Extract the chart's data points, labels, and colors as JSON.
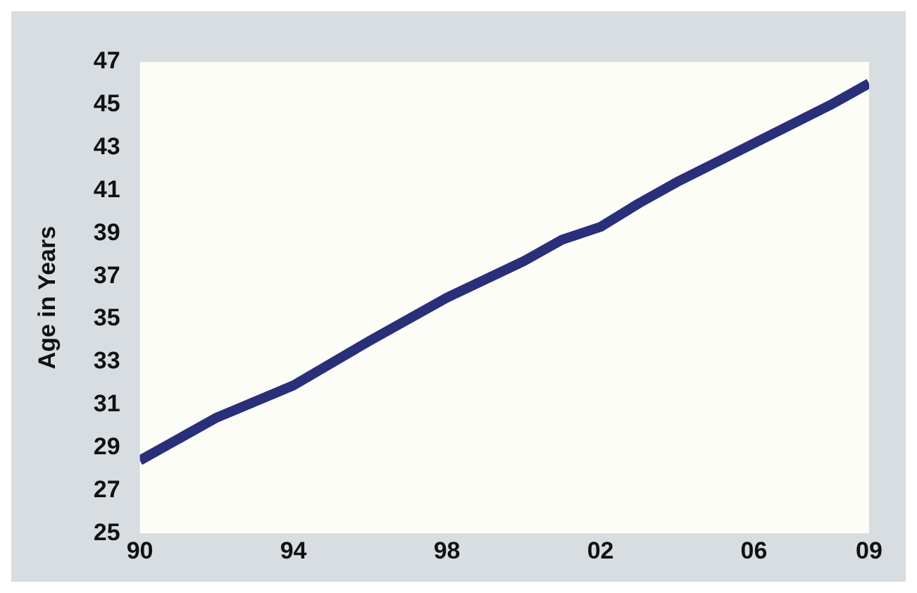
{
  "chart_data": {
    "type": "line",
    "ylabel": "Age in Years",
    "x": [
      1990,
      1992,
      1994,
      1996,
      1998,
      2000,
      2001,
      2002,
      2003,
      2004,
      2006,
      2008,
      2009
    ],
    "series": [
      {
        "color": "#2a2f7a",
        "values": [
          28.4,
          30.4,
          31.9,
          34.0,
          36.0,
          37.7,
          38.7,
          39.3,
          40.4,
          41.4,
          43.2,
          45.0,
          46.0
        ]
      }
    ],
    "xlim": [
      1990,
      2009
    ],
    "xticks": [
      {
        "value": 1990,
        "label": "90"
      },
      {
        "value": 1994,
        "label": "94"
      },
      {
        "value": 1998,
        "label": "98"
      },
      {
        "value": 2002,
        "label": "02"
      },
      {
        "value": 2006,
        "label": "06"
      },
      {
        "value": 2009,
        "label": "09"
      }
    ],
    "ylim": [
      25,
      47
    ],
    "yticks": [
      25,
      27,
      29,
      31,
      33,
      35,
      37,
      39,
      41,
      43,
      45,
      47
    ],
    "grid": false,
    "legend": false,
    "marker": "none",
    "line_style": "solid"
  }
}
